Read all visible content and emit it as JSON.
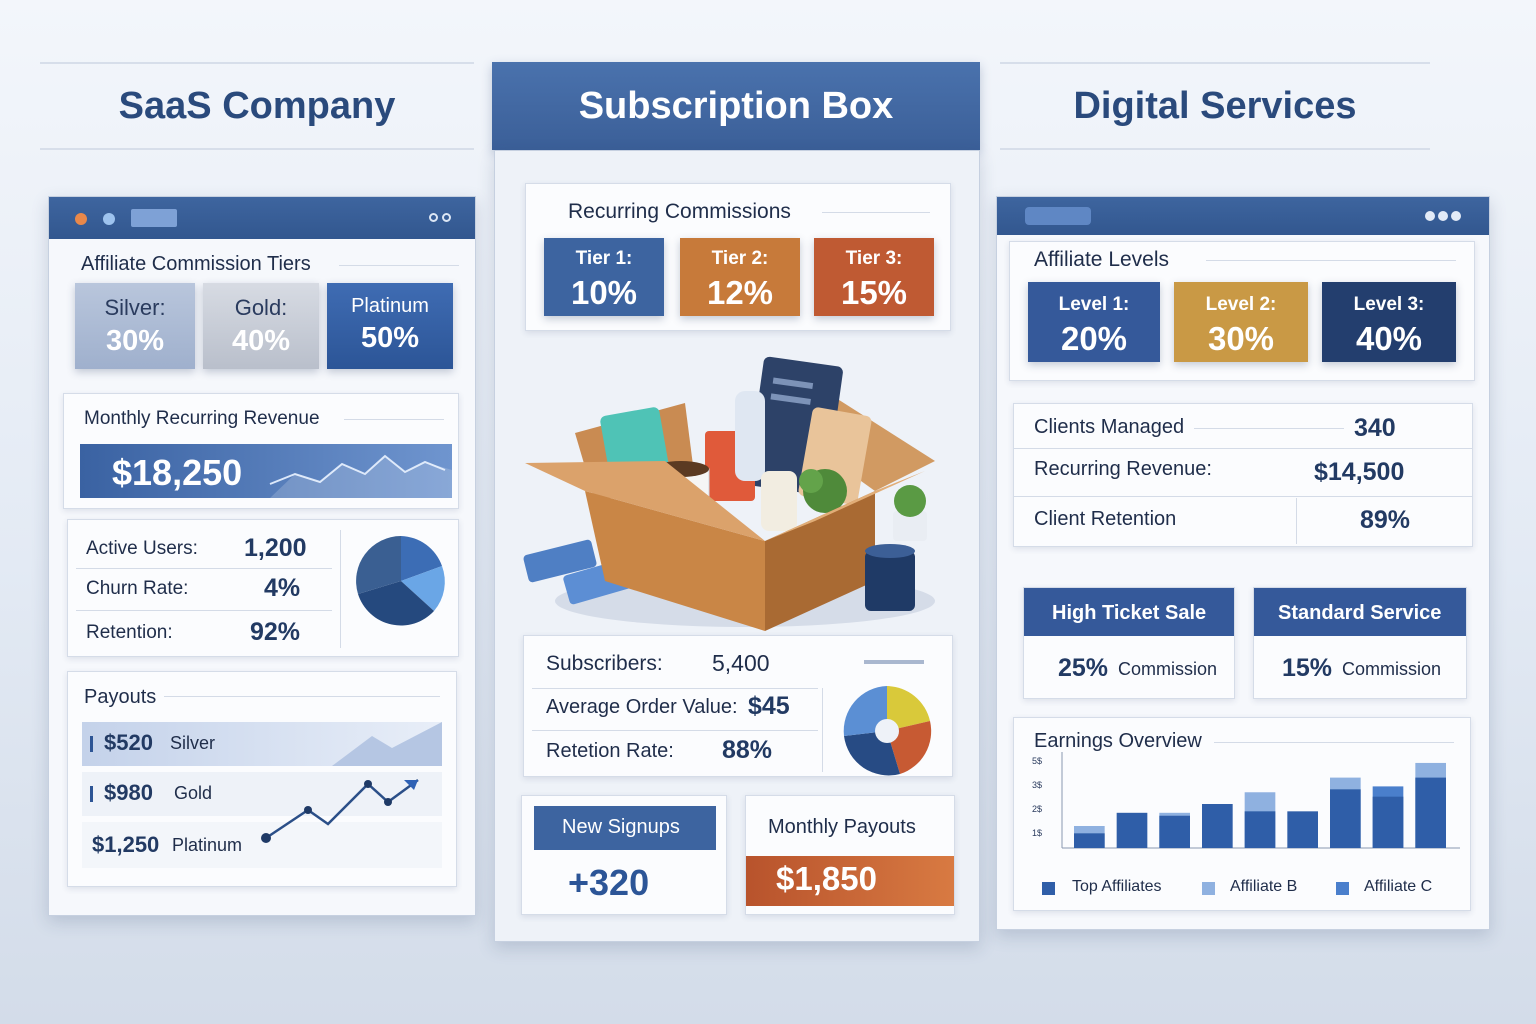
{
  "columns": {
    "saas": "SaaS Company",
    "subscription": "Subscription Box",
    "digital": "Digital Services"
  },
  "saas": {
    "tiers_title": "Affiliate Commission Tiers",
    "tiers": [
      {
        "name": "Silver:",
        "rate": "30%"
      },
      {
        "name": "Gold:",
        "rate": "40%"
      },
      {
        "name": "Platinum",
        "rate": "50%"
      }
    ],
    "mrr_title": "Monthly Recurring Revenue",
    "mrr_value": "$18,250",
    "stats": [
      {
        "label": "Active Users:",
        "value": "1,200"
      },
      {
        "label": "Churn Rate:",
        "value": "4%"
      },
      {
        "label": "Retention:",
        "value": "92%"
      }
    ],
    "payouts_title": "Payouts",
    "payouts": [
      {
        "amount": "$520",
        "tier": "Silver"
      },
      {
        "amount": "$980",
        "tier": "Gold"
      },
      {
        "amount": "$1,250",
        "tier": "Platinum"
      }
    ]
  },
  "subscription": {
    "recurring_title": "Recurring Commissions",
    "tiers": [
      {
        "name": "Tier 1:",
        "rate": "10%",
        "color": "#3d64a0"
      },
      {
        "name": "Tier 2:",
        "rate": "12%",
        "color": "#c77a3a"
      },
      {
        "name": "Tier 3:",
        "rate": "15%",
        "color": "#bf5a33"
      }
    ],
    "stats": [
      {
        "label": "Subscribers:",
        "value": "5,400"
      },
      {
        "label": "Average Order Value:",
        "value": "$45"
      },
      {
        "label": "Retetion Rate:",
        "value": "88%"
      }
    ],
    "signups_label": "New Signups",
    "signups_value": "+320",
    "payouts_label": "Monthly Payouts",
    "payouts_value": "$1,850"
  },
  "digital": {
    "levels_title": "Affiliate Levels",
    "levels": [
      {
        "name": "Level 1:",
        "rate": "20%",
        "color": "#35599a"
      },
      {
        "name": "Level 2:",
        "rate": "30%",
        "color": "#c99945"
      },
      {
        "name": "Level 3:",
        "rate": "40%",
        "color": "#233e6e"
      }
    ],
    "stats": [
      {
        "label": "Clients Managed",
        "value": "340"
      },
      {
        "label": "Recurring Revenue:",
        "value": "$14,500"
      },
      {
        "label": "Client Retention",
        "value": "89%"
      }
    ],
    "offers": [
      {
        "title": "High Ticket Sale",
        "pct": "25%",
        "suffix": "Commission"
      },
      {
        "title": "Standard Service",
        "pct": "15%",
        "suffix": "Commission"
      }
    ],
    "earnings_title": "Earnings Overview"
  },
  "chart_data": {
    "type": "bar",
    "title": "Earnings Overview",
    "y_ticks": [
      "5$",
      "3$",
      "2$",
      "1$"
    ],
    "series": [
      {
        "name": "Top Affiliates",
        "color": "#2f5ea8",
        "values": [
          10,
          24,
          22,
          30,
          25,
          25,
          40,
          35,
          48
        ]
      },
      {
        "name": "Affiliate B",
        "color": "#8fb1e0",
        "values": [
          15,
          0,
          24,
          0,
          38,
          0,
          48,
          0,
          58
        ]
      },
      {
        "name": "Affiliate C",
        "color": "#4a7fcc",
        "values": [
          0,
          0,
          0,
          0,
          0,
          0,
          0,
          42,
          0
        ]
      }
    ],
    "legend": [
      "Top Affiliates",
      "Affiliate B",
      "Affiliate C"
    ]
  }
}
